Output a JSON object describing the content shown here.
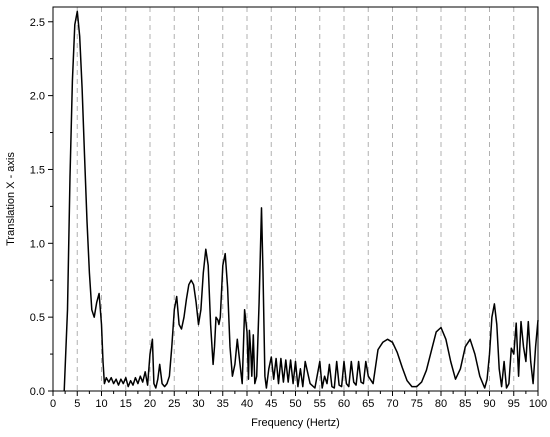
{
  "chart_data": {
    "type": "line",
    "title": "",
    "xlabel": "Frequency (Hertz)",
    "ylabel": "Translation X - axis",
    "xlim": [
      0,
      100
    ],
    "ylim": [
      0,
      2.6
    ],
    "xticks": [
      0,
      5,
      10,
      15,
      20,
      25,
      30,
      35,
      40,
      45,
      50,
      55,
      60,
      65,
      70,
      75,
      80,
      85,
      90,
      95,
      100
    ],
    "xtick_labels": [
      "0",
      "5",
      "10",
      "15",
      "20",
      "25",
      "30",
      "35",
      "40",
      "45",
      "50",
      "55",
      "60",
      "65",
      "70",
      "75",
      "80",
      "85",
      "90",
      "95",
      "100"
    ],
    "yticks": [
      0.0,
      0.5,
      1.0,
      1.5,
      2.0,
      2.5
    ],
    "ytick_labels": [
      "0.0",
      "0.5",
      "1.0",
      "1.5",
      "2.0",
      "2.5"
    ],
    "vertical_grid": "dashed gray lines at each 5 Hz",
    "series_color": "#000000",
    "grid_color": "#b0b0b0",
    "series": [
      {
        "x": [
          2.3,
          3.0,
          3.5,
          4.0,
          4.5,
          5.0,
          5.5,
          6.0,
          6.5,
          7.0,
          7.5,
          8.0,
          8.5,
          9.0,
          9.5,
          10.0,
          10.3,
          10.6,
          11.0,
          11.5,
          12.0,
          12.5,
          13.0,
          13.5,
          14.0,
          14.5,
          15.0,
          15.5,
          16.0,
          16.5,
          17.0,
          17.5,
          18.0,
          18.5,
          19.0,
          19.5,
          20.0,
          20.5,
          20.8,
          21.2,
          21.6,
          22.0,
          22.5,
          23.0,
          23.5,
          24.0,
          24.5,
          25.0,
          25.5,
          26.0,
          26.5,
          27.0,
          27.5,
          28.0,
          28.5,
          29.0,
          29.5,
          30.0,
          30.5,
          31.0,
          31.5,
          32.0,
          32.5,
          33.0,
          33.3,
          33.6,
          34.0,
          34.2,
          34.5,
          35.0,
          35.5,
          36.0,
          36.5,
          37.0,
          37.5,
          38.0,
          38.5,
          39.0,
          39.5,
          40.0,
          40.3,
          40.5,
          40.8,
          41.0,
          41.3,
          41.6,
          42.0,
          42.5,
          43.0,
          43.3,
          43.7,
          44.0,
          44.5,
          45.0,
          45.5,
          46.0,
          46.5,
          47.0,
          47.5,
          48.0,
          48.5,
          49.0,
          49.5,
          50.0,
          50.5,
          51.0,
          51.5,
          52.0,
          53.0,
          54.0,
          55.0,
          55.5,
          56.0,
          56.5,
          57.0,
          57.5,
          58.0,
          58.5,
          59.0,
          59.5,
          60.0,
          60.5,
          61.0,
          61.5,
          62.0,
          62.5,
          63.0,
          63.5,
          64.0,
          64.5,
          65.0,
          66.0,
          67.0,
          68.0,
          69.0,
          70.0,
          71.0,
          72.0,
          73.0,
          74.0,
          75.0,
          76.0,
          77.0,
          78.0,
          79.0,
          80.0,
          81.0,
          82.0,
          83.0,
          84.0,
          85.0,
          86.0,
          87.0,
          88.0,
          89.0,
          89.5,
          90.0,
          90.5,
          91.0,
          91.5,
          92.0,
          92.5,
          93.0,
          93.5,
          94.0,
          94.5,
          95.0,
          95.5,
          96.0,
          96.5,
          97.0,
          97.5,
          98.0,
          98.5,
          99.0,
          99.5,
          100.0
        ],
        "y": [
          0.0,
          0.55,
          1.45,
          2.1,
          2.48,
          2.57,
          2.4,
          2.05,
          1.6,
          1.15,
          0.8,
          0.55,
          0.5,
          0.6,
          0.66,
          0.45,
          0.2,
          0.05,
          0.09,
          0.06,
          0.09,
          0.05,
          0.08,
          0.04,
          0.08,
          0.05,
          0.09,
          0.03,
          0.07,
          0.04,
          0.09,
          0.05,
          0.1,
          0.06,
          0.13,
          0.04,
          0.25,
          0.35,
          0.05,
          0.02,
          0.08,
          0.18,
          0.05,
          0.03,
          0.05,
          0.1,
          0.3,
          0.55,
          0.64,
          0.45,
          0.42,
          0.5,
          0.62,
          0.72,
          0.75,
          0.72,
          0.6,
          0.45,
          0.55,
          0.8,
          0.96,
          0.85,
          0.45,
          0.18,
          0.3,
          0.5,
          0.48,
          0.45,
          0.5,
          0.85,
          0.93,
          0.7,
          0.3,
          0.1,
          0.18,
          0.35,
          0.2,
          0.05,
          0.55,
          0.4,
          0.08,
          0.41,
          0.25,
          0.1,
          0.38,
          0.05,
          0.1,
          0.6,
          1.24,
          0.8,
          0.1,
          0.02,
          0.15,
          0.23,
          0.08,
          0.22,
          0.05,
          0.22,
          0.06,
          0.21,
          0.06,
          0.21,
          0.05,
          0.2,
          0.03,
          0.15,
          0.03,
          0.2,
          0.05,
          0.02,
          0.2,
          0.02,
          0.1,
          0.05,
          0.18,
          0.03,
          0.02,
          0.2,
          0.04,
          0.03,
          0.2,
          0.05,
          0.03,
          0.2,
          0.06,
          0.04,
          0.2,
          0.06,
          0.05,
          0.2,
          0.1,
          0.05,
          0.28,
          0.33,
          0.35,
          0.33,
          0.26,
          0.16,
          0.07,
          0.03,
          0.03,
          0.06,
          0.14,
          0.27,
          0.4,
          0.43,
          0.35,
          0.2,
          0.08,
          0.15,
          0.3,
          0.35,
          0.25,
          0.1,
          0.02,
          0.08,
          0.25,
          0.5,
          0.59,
          0.45,
          0.15,
          0.03,
          0.2,
          0.02,
          0.05,
          0.29,
          0.25,
          0.46,
          0.1,
          0.47,
          0.3,
          0.2,
          0.47,
          0.2,
          0.05,
          0.3,
          0.48
        ]
      }
    ]
  }
}
